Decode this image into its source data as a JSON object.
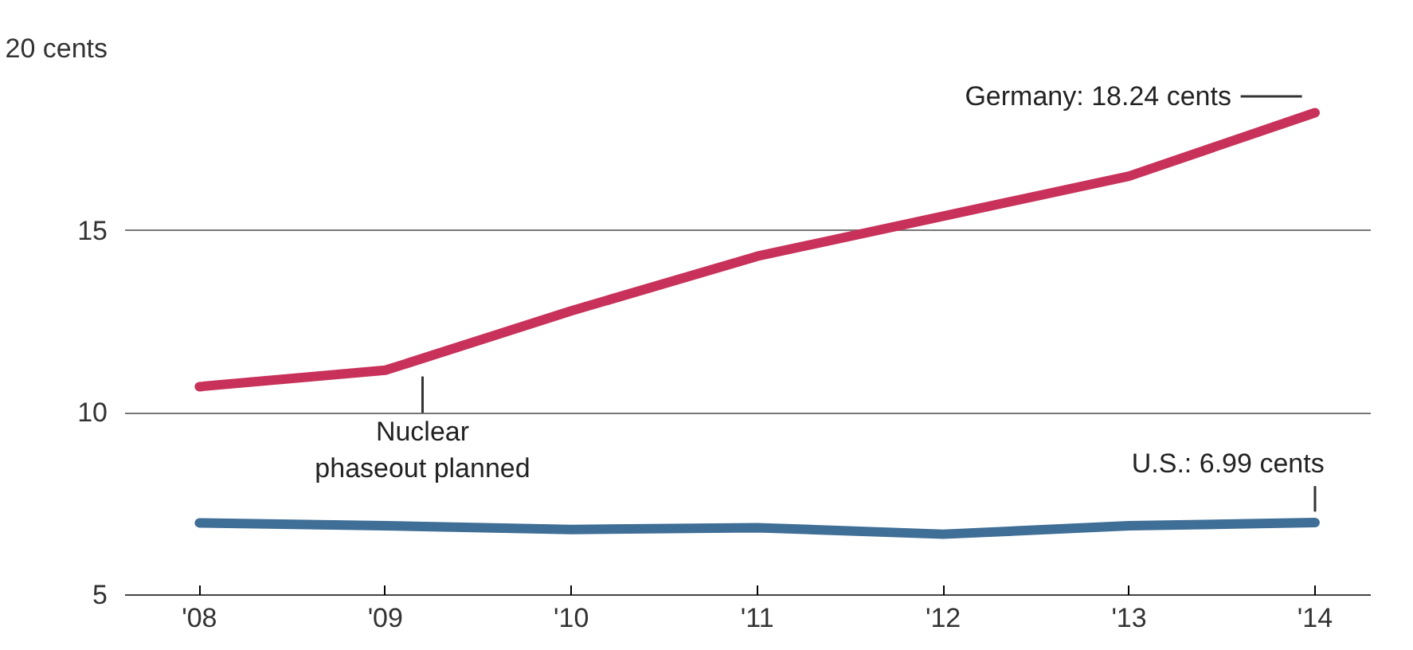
{
  "chart_data": {
    "type": "line",
    "x": [
      2008,
      2009,
      2010,
      2011,
      2012,
      2013,
      2014
    ],
    "series": [
      {
        "name": "Germany:",
        "color": "#c8325a",
        "values": [
          10.72,
          11.17,
          12.8,
          14.3,
          15.4,
          16.5,
          18.24
        ],
        "value_labels": [
          null,
          null,
          null,
          null,
          null,
          null,
          "18.24 cents"
        ]
      },
      {
        "name": "U.S.:",
        "color": "#3f6e96",
        "values": [
          6.98,
          6.9,
          6.8,
          6.85,
          6.67,
          6.9,
          6.99
        ],
        "value_labels": [
          null,
          null,
          null,
          null,
          null,
          null,
          "6.99 cents"
        ]
      }
    ],
    "xlim": [
      2007.6,
      2014.3
    ],
    "ylim": [
      5,
      20
    ],
    "xticks": [
      {
        "value": 2008,
        "label": "'08"
      },
      {
        "value": 2009,
        "label": "'09"
      },
      {
        "value": 2010,
        "label": "'10"
      },
      {
        "value": 2011,
        "label": "'11"
      },
      {
        "value": 2012,
        "label": "'12"
      },
      {
        "value": 2013,
        "label": "'13"
      },
      {
        "value": 2014,
        "label": "'14"
      }
    ],
    "yticks": [
      5,
      10,
      15,
      {
        "value": 20,
        "label": "20 cents"
      }
    ],
    "grid": "y",
    "marker": "none",
    "line_style": "solid",
    "annotations": [
      {
        "text": "Nuclear\nphaseout planned",
        "x": 2009.2,
        "y": 11.3
      }
    ]
  }
}
